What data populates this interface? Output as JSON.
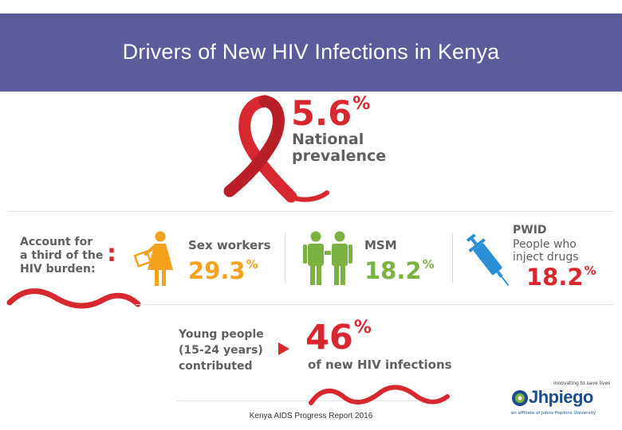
{
  "banner": {
    "title": "Drivers of New HIV Infections in Kenya"
  },
  "national": {
    "value": "5.6",
    "unit": "%",
    "label_line1": "National",
    "label_line2": "prevalence"
  },
  "burden": {
    "line1": "Account for",
    "line2": "a third of the",
    "line3": "HIV burden:",
    "separator": ":"
  },
  "groups": [
    {
      "name": "Sex workers",
      "value": "29.3",
      "unit": "%"
    },
    {
      "name": "MSM",
      "value": "18.2",
      "unit": "%"
    },
    {
      "name": "PWID",
      "subtitle_line1": "People who",
      "subtitle_line2": "inject drugs",
      "value": "18.2",
      "unit": "%"
    }
  ],
  "young": {
    "line1": "Young people",
    "line2": "(15-24 years)",
    "line3": "contributed",
    "value": "46",
    "unit": "%",
    "caption": "of new HIV infections"
  },
  "logo": {
    "tagline": "innovating to save lives",
    "name": "Jhpiego",
    "affiliate": "an affiliate of Johns Hopkins University"
  },
  "footer": {
    "source": "Kenya AIDS Progress Report 2016"
  },
  "colors": {
    "banner": "#5c5b9b",
    "accent_red": "#d7282f",
    "green": "#7bb241",
    "blue": "#2b8fd6",
    "orange": "#f4a21e",
    "text_grey": "#5f5f5f"
  },
  "icons": [
    "awareness-ribbon-icon",
    "sex-worker-icon",
    "msm-icon",
    "syringe-icon",
    "arrow-right-icon",
    "jhpiego-logo-icon"
  ]
}
